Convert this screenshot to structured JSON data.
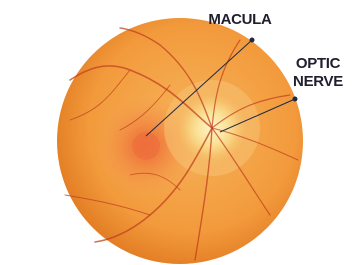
{
  "nodes": [
    {
      "label": "MACULA"
    },
    {
      "label_lines": [
        "OPTIC",
        "NERVE"
      ]
    }
  ]
}
